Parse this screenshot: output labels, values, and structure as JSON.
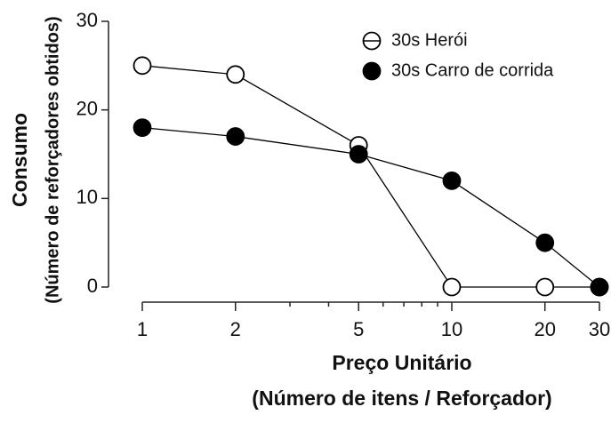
{
  "chart_data": {
    "type": "line",
    "ylabel": [
      "Consumo",
      "(Número de reforçadores obtidos)"
    ],
    "xlabel": [
      "Preço Unitário",
      "(Número de itens / Reforçador)"
    ],
    "x": [
      1,
      2,
      5,
      10,
      20,
      30
    ],
    "series": [
      {
        "name": "30s Herói",
        "color": "#000000",
        "marker": "open",
        "values": [
          25,
          24,
          16,
          0,
          0,
          0
        ]
      },
      {
        "name": "30s Carro de corrida",
        "color": "#000000",
        "marker": "filled",
        "values": [
          18,
          17,
          15,
          12,
          5,
          0
        ]
      }
    ],
    "xscale": "log",
    "xlim": [
      1,
      30
    ],
    "xticks": [
      1,
      2,
      5,
      10,
      20,
      30
    ],
    "xminorticks": [
      3,
      4,
      6,
      7,
      8,
      9
    ],
    "ylim": [
      0,
      30
    ],
    "yticks": [
      0,
      10,
      20,
      30
    ],
    "legend": "upper right"
  }
}
